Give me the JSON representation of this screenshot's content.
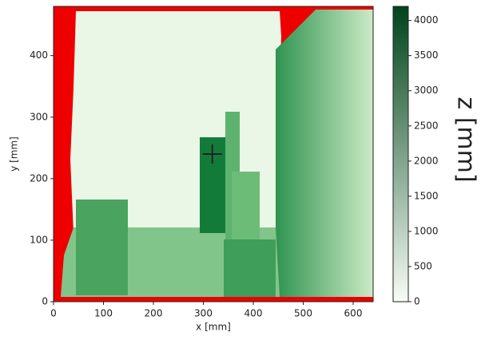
{
  "chart_data": {
    "type": "heatmap",
    "xlabel": "x [mm]",
    "ylabel": "y [mm]",
    "xlim": [
      0,
      640
    ],
    "xticks": [
      0,
      100,
      200,
      300,
      400,
      500,
      600
    ],
    "ylim": [
      0,
      480
    ],
    "yticks": [
      0,
      100,
      200,
      300,
      400
    ],
    "colorbar": {
      "label": "z [mm]",
      "lim": [
        0,
        4200
      ],
      "ticks": [
        0,
        500,
        1000,
        1500,
        2000,
        2500,
        3000,
        3500,
        4000
      ],
      "colors": [
        "#f7fcf5",
        "#00441b"
      ]
    },
    "markers": [
      {
        "x": 318,
        "y": 240,
        "color": "#222222"
      }
    ]
  }
}
